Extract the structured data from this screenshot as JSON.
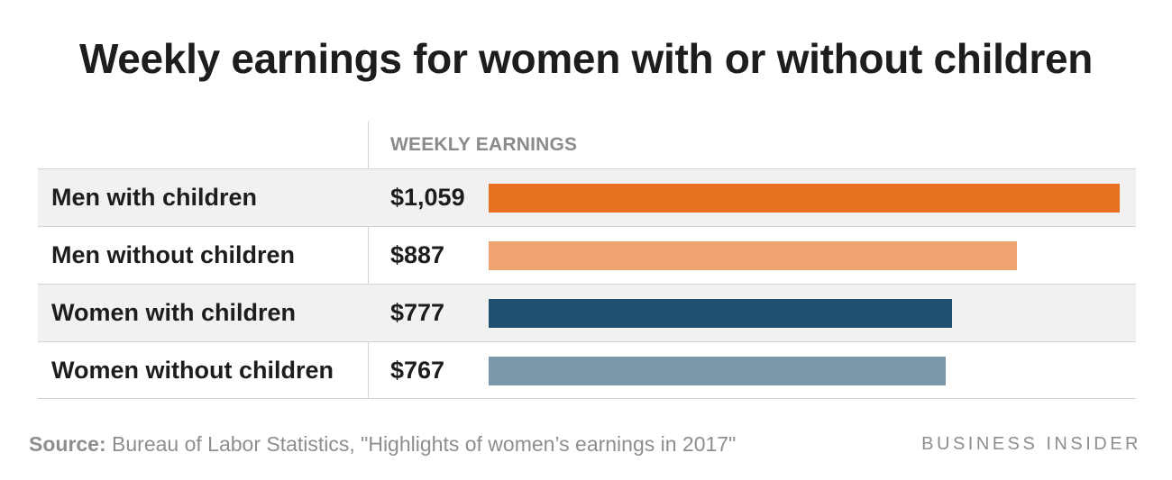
{
  "title": "Weekly earnings for women with or without children",
  "column_header": "WEEKLY EARNINGS",
  "rows": [
    {
      "label": "Men with children",
      "value_text": "$1,059"
    },
    {
      "label": "Men without children",
      "value_text": "$887"
    },
    {
      "label": "Women with children",
      "value_text": "$777"
    },
    {
      "label": "Women without children",
      "value_text": "$767"
    }
  ],
  "chart_data": {
    "type": "bar",
    "orientation": "horizontal",
    "title": "Weekly earnings for women with or without children",
    "column_header": "WEEKLY EARNINGS",
    "categories": [
      "Men with children",
      "Men without children",
      "Women with children",
      "Women without children"
    ],
    "values": [
      1059,
      887,
      777,
      767
    ],
    "value_labels": [
      "$1,059",
      "$887",
      "$777",
      "$767"
    ],
    "colors": [
      "#e87121",
      "#f0a470",
      "#1f5070",
      "#7b97aa"
    ],
    "xlim": [
      0,
      1059
    ],
    "grid": false,
    "legend": "none"
  },
  "source": {
    "label": "Source:",
    "text": "Bureau of Labor Statistics, \"Highlights of women’s earnings in 2017\""
  },
  "brand": "BUSINESS INSIDER"
}
